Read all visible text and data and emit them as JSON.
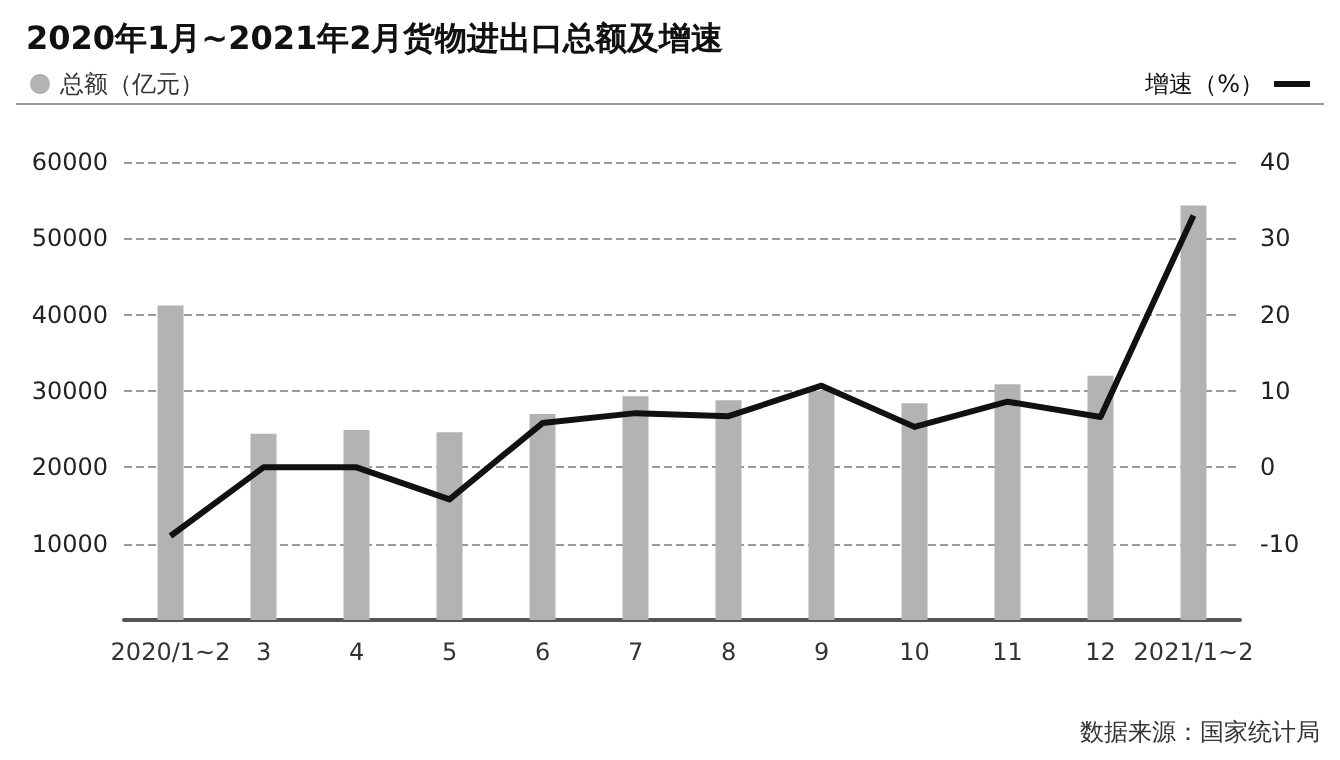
{
  "chart_data": {
    "type": "bar",
    "title": "2020年1月~2021年2月货物进出口总额及增速",
    "categories": [
      "2020/1~2",
      "3",
      "4",
      "5",
      "6",
      "7",
      "8",
      "9",
      "10",
      "11",
      "12",
      "2021/1~2"
    ],
    "series": [
      {
        "name": "总额（亿元）",
        "color": "#b3b3b3",
        "values": [
          41200,
          24400,
          24900,
          24600,
          27000,
          29300,
          28800,
          30000,
          28400,
          30900,
          32000,
          54300
        ]
      },
      {
        "name": "增速（%）",
        "type": "line",
        "axis": "y2",
        "color": "#111111",
        "values": [
          -9.0,
          0,
          0,
          -4.2,
          5.8,
          7.1,
          6.7,
          10.7,
          5.3,
          8.6,
          6.6,
          33.0
        ]
      }
    ],
    "ylim": [
      0,
      60000
    ],
    "yticks": [
      10000,
      20000,
      30000,
      40000,
      50000,
      60000
    ],
    "y2lim": [
      -20,
      40
    ],
    "y2ticks": [
      -10,
      0,
      10,
      20,
      30,
      40
    ],
    "grid": "y",
    "legend": "top",
    "marker": "none",
    "annotations": [
      "数据来源：国家统计局"
    ]
  }
}
